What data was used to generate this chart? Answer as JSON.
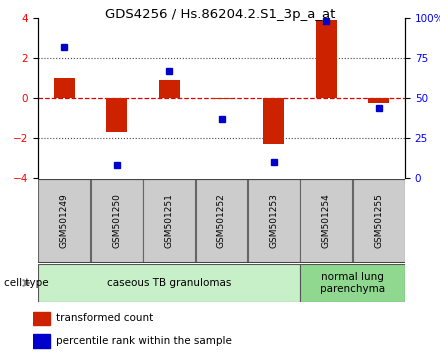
{
  "title": "GDS4256 / Hs.86204.2.S1_3p_a_at",
  "samples": [
    "GSM501249",
    "GSM501250",
    "GSM501251",
    "GSM501252",
    "GSM501253",
    "GSM501254",
    "GSM501255"
  ],
  "transformed_count": [
    1.0,
    -1.7,
    0.9,
    -0.05,
    -2.3,
    3.9,
    -0.25
  ],
  "percentile_rank": [
    82,
    8,
    67,
    37,
    10,
    98,
    44
  ],
  "bar_color": "#cc2200",
  "dot_color": "#0000cc",
  "ylim_left": [
    -4,
    4
  ],
  "ylim_right": [
    0,
    100
  ],
  "yticks_left": [
    -4,
    -2,
    0,
    2,
    4
  ],
  "yticks_right": [
    0,
    25,
    50,
    75,
    100
  ],
  "yticklabels_right": [
    "0",
    "25",
    "50",
    "75",
    "100%"
  ],
  "hlines_dotted": [
    -2,
    2
  ],
  "zero_line_color": "#dd0000",
  "dotted_line_color": "#444444",
  "groups": [
    {
      "label": "caseous TB granulomas",
      "samples": [
        0,
        1,
        2,
        3,
        4
      ],
      "color": "#c8f0c8"
    },
    {
      "label": "normal lung\nparenchyma",
      "samples": [
        5,
        6
      ],
      "color": "#90d890"
    }
  ],
  "cell_type_label": "cell type",
  "legend_items": [
    {
      "color": "#cc2200",
      "label": "transformed count"
    },
    {
      "color": "#0000cc",
      "label": "percentile rank within the sample"
    }
  ],
  "bg_color": "#ffffff",
  "plot_bg": "#ffffff",
  "sample_box_color": "#cccccc",
  "title_fontsize": 9.5,
  "tick_fontsize": 7.5,
  "legend_fontsize": 7.5,
  "sample_fontsize": 6.5,
  "group_fontsize": 7.5
}
